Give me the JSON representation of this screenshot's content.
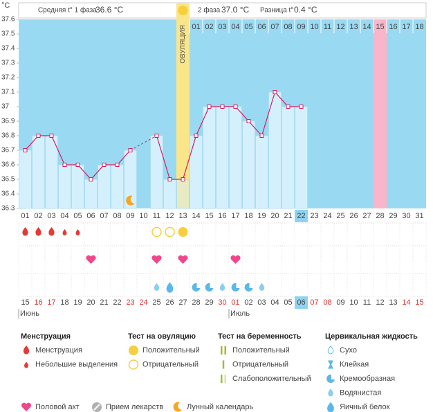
{
  "chart_data": {
    "type": "line",
    "unit": "°C",
    "summary": {
      "phase1_label": "Средняя t° 1 фаза",
      "phase1_value": "36.6 °C",
      "phase2_label": "2 фаза",
      "phase2_value": "37.0 °C",
      "diff_label": "Разница t°",
      "diff_value": "0.4 °C"
    },
    "categories": [
      "01",
      "02",
      "03",
      "04",
      "05",
      "06",
      "07",
      "08",
      "09",
      "10",
      "11",
      "12",
      "13",
      "14",
      "15",
      "16",
      "17",
      "18",
      "19",
      "20",
      "21",
      "22",
      "23",
      "24",
      "25",
      "26",
      "27",
      "28",
      "29",
      "30",
      "31"
    ],
    "cycle_days": [
      null,
      null,
      null,
      null,
      null,
      null,
      null,
      null,
      null,
      null,
      null,
      null,
      null,
      "01",
      "02",
      "03",
      "04",
      "05",
      "06",
      "07",
      "08",
      "09",
      "10",
      "11",
      "12",
      "13",
      "14",
      "15",
      "16",
      "17",
      "18"
    ],
    "values": [
      36.7,
      36.8,
      36.8,
      36.6,
      36.6,
      36.5,
      36.6,
      36.6,
      36.7,
      null,
      36.8,
      36.5,
      36.5,
      36.8,
      37.0,
      37.0,
      37.0,
      36.9,
      36.8,
      37.1,
      37.0,
      37.0,
      null,
      null,
      null,
      null,
      null,
      null,
      null,
      null,
      null
    ],
    "ylim": [
      36.3,
      37.6
    ],
    "yticks": [
      36.3,
      36.4,
      36.5,
      36.6,
      36.7,
      36.8,
      36.9,
      37,
      37.1,
      37.2,
      37.3,
      37.4,
      37.5,
      37.6
    ],
    "line_color": "#d81b60",
    "bar_color": "#d4f0fc",
    "background_color": "#99d9f2",
    "ovulation_day": "13",
    "ovulation_label": "ОВУЛЯЦИЯ",
    "ovulation_color": "#fbe589",
    "expected_period_day": "28",
    "expected_period_color": "#f9b5c9",
    "today": "22",
    "today_color": "#8fd3f0",
    "lunar_calendar_day": "09",
    "menstruation": [
      "Менструация",
      "Менструация",
      "Менструация",
      "Небольшие выделения",
      "Небольшие выделения",
      null,
      null,
      null,
      null,
      null,
      null,
      null,
      null,
      null,
      null,
      null,
      null,
      null,
      null,
      null,
      null,
      null,
      null,
      null,
      null,
      null,
      null,
      null,
      null,
      null,
      null
    ],
    "ovulation_test": [
      null,
      null,
      null,
      null,
      null,
      null,
      null,
      null,
      null,
      null,
      "Отрицательный",
      "Отрицательный",
      "Положительный",
      null,
      null,
      null,
      null,
      null,
      null,
      null,
      null,
      null,
      null,
      null,
      null,
      null,
      null,
      null,
      null,
      null,
      null
    ],
    "intercourse": [
      null,
      null,
      null,
      null,
      null,
      "Половой акт",
      null,
      null,
      null,
      null,
      "Половой акт",
      null,
      "Половой акт",
      null,
      null,
      null,
      "Половой акт",
      null,
      null,
      null,
      null,
      null,
      null,
      null,
      null,
      null,
      null,
      null,
      null,
      null,
      null
    ],
    "cervical_fluid": [
      null,
      null,
      null,
      null,
      null,
      null,
      null,
      null,
      null,
      null,
      "Водянистая",
      "Яичный белок",
      null,
      "Кремообразная",
      "Кремообразная",
      "Водянистая",
      "Кремообразная",
      "Кремообразная",
      "Водянистая",
      null,
      null,
      null,
      null,
      null,
      null,
      null,
      null,
      null,
      null,
      null,
      null
    ],
    "dates": [
      "15",
      "16",
      "17",
      "18",
      "19",
      "20",
      "21",
      "22",
      "23",
      "24",
      "25",
      "26",
      "27",
      "28",
      "29",
      "30",
      "01",
      "02",
      "03",
      "04",
      "05",
      "06",
      "07",
      "08",
      "09",
      "10",
      "11",
      "12",
      "13",
      "14",
      "15"
    ],
    "date_colors": [
      "#444",
      "#e0302f",
      "#e0302f",
      "#444",
      "#444",
      "#444",
      "#444",
      "#444",
      "#e0302f",
      "#e0302f",
      "#444",
      "#444",
      "#444",
      "#444",
      "#444",
      "#e0302f",
      "#e0302f",
      "#444",
      "#444",
      "#444",
      "#444",
      "#444",
      "#e0302f",
      "#e0302f",
      "#444",
      "#444",
      "#444",
      "#444",
      "#444",
      "#e0302f",
      "#e0302f"
    ],
    "months": [
      "Июнь",
      "Июль"
    ],
    "month_starts": [
      0,
      16
    ]
  },
  "legend": {
    "groups": [
      {
        "title": "Менструация",
        "items": [
          "Менструация",
          "Небольшие выделения"
        ]
      },
      {
        "title": "Тест на овуляцию",
        "items": [
          "Положительный",
          "Отрицательный"
        ]
      },
      {
        "title": "Тест на беременность",
        "items": [
          "Положительный",
          "Отрицательный",
          "Слабоположительный"
        ]
      },
      {
        "title": "Цервикальная жидкость",
        "items": [
          "Сухо",
          "Клейкая",
          "Кремообразная",
          "Водянистая",
          "Яичный белок"
        ]
      }
    ],
    "extras": [
      "Половой акт",
      "Прием лекарств",
      "Лунный календарь"
    ]
  }
}
